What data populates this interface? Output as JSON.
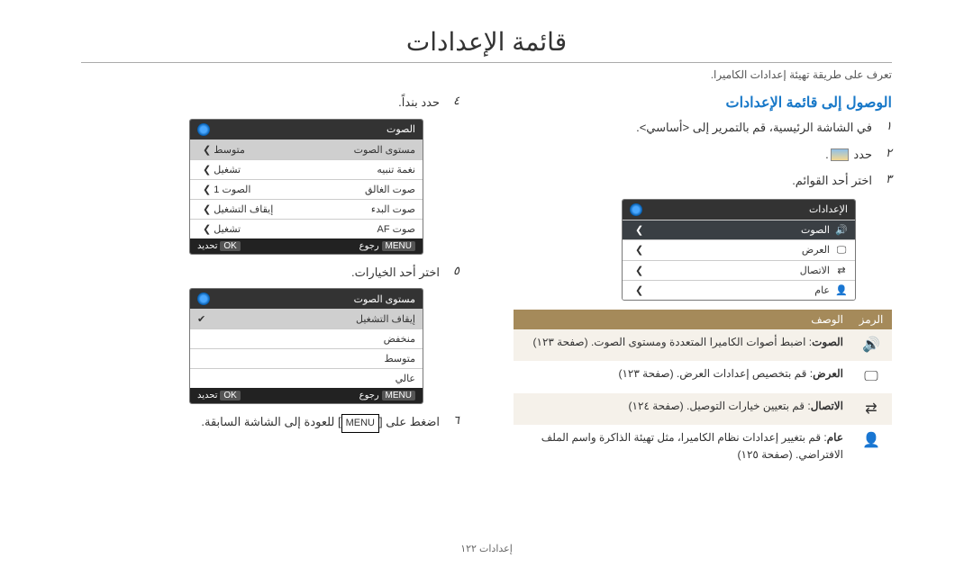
{
  "title": "قائمة الإعدادات",
  "tagline": "تعرف على طريقة تهيئة إعدادات الكاميرا.",
  "section_title": "الوصول إلى قائمة الإعدادات",
  "steps_right": [
    {
      "n": "١",
      "t": "في الشاشة الرئيسية، قم بالتمرير إلى <أساسي>."
    },
    {
      "n": "٢",
      "t": "حدد "
    },
    {
      "n": "٣",
      "t": "اختر أحد القوائم."
    }
  ],
  "settings_panel": {
    "header": "الإعدادات",
    "rows": [
      {
        "ico": "🔊",
        "label": "الصوت",
        "hi": true
      },
      {
        "ico": "🖵",
        "label": "العرض"
      },
      {
        "ico": "⇄",
        "label": "الاتصال"
      },
      {
        "ico": "👤",
        "label": "عام"
      }
    ]
  },
  "legend": {
    "head_icon": "الرمز",
    "head_desc": "الوصف",
    "rows": [
      {
        "ico": "🔊",
        "title": "الصوت",
        "desc": ": اضبط أصوات الكاميرا المتعددة ومستوى الصوت. (صفحة ١٢٣)"
      },
      {
        "ico": "🖵",
        "title": "العرض",
        "desc": ": قم بتخصيص إعدادات العرض. (صفحة ١٢٣)"
      },
      {
        "ico": "⇄",
        "title": "الاتصال",
        "desc": ": قم بتعيين خيارات التوصيل. (صفحة ١٢٤)"
      },
      {
        "ico": "👤",
        "title": "عام",
        "desc": ": قم بتغيير إعدادات نظام الكاميرا، مثل تهيئة الذاكرة واسم الملف الافتراضي. (صفحة ١٢٥)"
      }
    ]
  },
  "steps_left": [
    {
      "n": "٤",
      "t": "حدد بنداً."
    },
    {
      "n": "٥",
      "t": "اختر أحد الخيارات."
    },
    {
      "n": "٦",
      "t": "اضغط على [",
      "t2": "] للعودة إلى الشاشة السابقة."
    }
  ],
  "sound_panel": {
    "header": "الصوت",
    "rows": [
      {
        "l": "مستوى الصوت",
        "v": "متوسط",
        "hi": true
      },
      {
        "l": "نغمة تنبيه",
        "v": "تشغيل"
      },
      {
        "l": "صوت الغالق",
        "v": "الصوت 1"
      },
      {
        "l": "صوت البدء",
        "v": "إيقاف التشغيل"
      },
      {
        "l": "صوت AF",
        "v": "تشغيل"
      }
    ]
  },
  "level_panel": {
    "header": "مستوى الصوت",
    "rows": [
      {
        "label": "إيقاف التشغيل",
        "check": true
      },
      {
        "label": "منخفض"
      },
      {
        "label": "متوسط"
      },
      {
        "label": "عالي"
      }
    ]
  },
  "footer_btns": {
    "menu": "MENU",
    "back": "رجوع",
    "ok": "OK",
    "sel": "تحديد"
  },
  "menu_key": "MENU",
  "page_footer": "إعدادات  ١٢٢"
}
